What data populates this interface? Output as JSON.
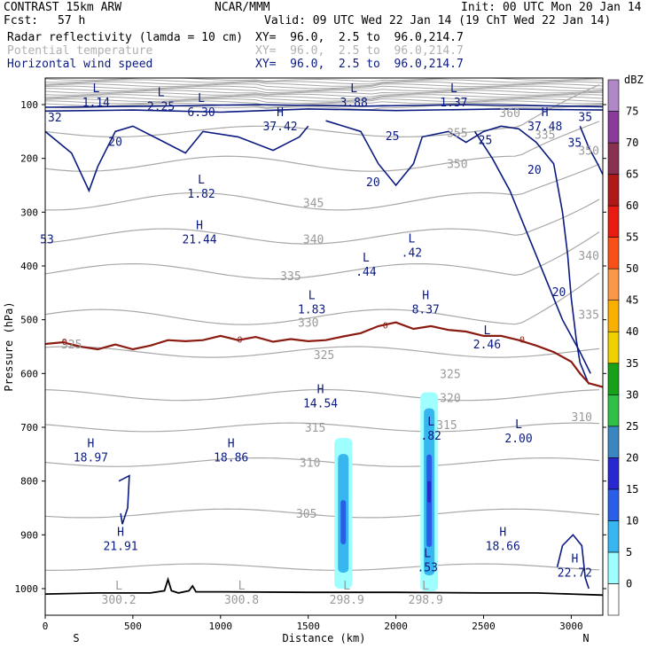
{
  "header": {
    "model": "CONTRAST 15km ARW",
    "center": "NCAR/MMM",
    "init": "Init: 00 UTC Mon 20 Jan 14",
    "fcst_label": "Fcst:",
    "fcst_value": "57 h",
    "valid": "Valid: 09 UTC Wed 22 Jan 14 (19 ChT Wed 22 Jan 14)",
    "fields": [
      {
        "name": "Radar reflectivity (lamda = 10 cm)",
        "xy": "XY=  96.0,  2.5 to  96.0,214.7",
        "color": "#000000"
      },
      {
        "name": "Potential temperature",
        "xy": "XY=  96.0,  2.5 to  96.0,214.7",
        "color": "#b0b0b0"
      },
      {
        "name": "Horizontal wind speed",
        "xy": "XY=  96.0,  2.5 to  96.0,214.7",
        "color": "#0a1a80"
      }
    ]
  },
  "chart_data": {
    "type": "cross-section",
    "xlabel": "Distance (km)",
    "ylabel": "Pressure (hPa)",
    "xlim": [
      0,
      3180
    ],
    "ylim": [
      1050,
      50
    ],
    "x_ticks": [
      "0",
      "500",
      "1000",
      "1500",
      "2000",
      "2500",
      "3000"
    ],
    "y_ticks": [
      "100",
      "200",
      "300",
      "400",
      "500",
      "600",
      "700",
      "800",
      "900",
      "1000"
    ],
    "x_ends": {
      "left": "S",
      "right": "N"
    },
    "colorbar": {
      "unit": "dBZ",
      "levels": [
        "0",
        "5",
        "10",
        "15",
        "20",
        "25",
        "30",
        "35",
        "40",
        "45",
        "50",
        "55",
        "60",
        "65",
        "70",
        "75"
      ],
      "colors": [
        "#ffffff",
        "#9ffefe",
        "#38b6f0",
        "#2a5ee8",
        "#2828d0",
        "#3a86c0",
        "#30c048",
        "#18a018",
        "#f0d000",
        "#f8b000",
        "#f89848",
        "#f85018",
        "#e81a12",
        "#b01818",
        "#883050",
        "#8a3a9a",
        "#b088c8"
      ]
    },
    "reflectivity_columns": [
      {
        "x": 1700,
        "p_top": 720,
        "p_bottom": 1000,
        "max_dbz": 15
      },
      {
        "x": 2190,
        "p_top": 635,
        "p_bottom": 1005,
        "max_dbz": 20
      }
    ],
    "theta_labels": [
      {
        "text": "325",
        "x": 150,
        "p": 545
      },
      {
        "text": "360",
        "x": 2650,
        "p": 115
      },
      {
        "text": "355",
        "x": 2350,
        "p": 152
      },
      {
        "text": "350",
        "x": 2350,
        "p": 210
      },
      {
        "text": "345",
        "x": 1530,
        "p": 282
      },
      {
        "text": "340",
        "x": 1530,
        "p": 350
      },
      {
        "text": "335",
        "x": 1400,
        "p": 418
      },
      {
        "text": "330",
        "x": 1500,
        "p": 505
      },
      {
        "text": "325",
        "x": 1590,
        "p": 565
      },
      {
        "text": "325",
        "x": 2310,
        "p": 600
      },
      {
        "text": "320",
        "x": 2310,
        "p": 645
      },
      {
        "text": "315",
        "x": 2290,
        "p": 695
      },
      {
        "text": "315",
        "x": 1540,
        "p": 700
      },
      {
        "text": "310",
        "x": 1510,
        "p": 765
      },
      {
        "text": "305",
        "x": 1490,
        "p": 860
      },
      {
        "text": "310",
        "x": 3060,
        "p": 680
      },
      {
        "text": "340",
        "x": 3100,
        "p": 380
      },
      {
        "text": "335",
        "x": 3100,
        "p": 490
      },
      {
        "text": "350",
        "x": 3100,
        "p": 185
      },
      {
        "text": "335",
        "x": 2850,
        "p": 155
      }
    ],
    "wind_labels": [
      {
        "text": "20",
        "x": 400,
        "p": 168
      },
      {
        "text": "25",
        "x": 1980,
        "p": 158
      },
      {
        "text": "25",
        "x": 2510,
        "p": 165
      },
      {
        "text": "20",
        "x": 1870,
        "p": 243
      },
      {
        "text": "20",
        "x": 2790,
        "p": 220
      },
      {
        "text": "20",
        "x": 2930,
        "p": 448
      },
      {
        "text": "35",
        "x": 3080,
        "p": 122
      },
      {
        "text": "35",
        "x": 3020,
        "p": 170
      },
      {
        "text": "32",
        "x": 55,
        "p": 123
      },
      {
        "text": "53",
        "x": 10,
        "p": 350
      }
    ],
    "wind_zero_labels": [
      {
        "text": "0",
        "x": 110,
        "p": 542
      },
      {
        "text": "0",
        "x": 1110,
        "p": 538
      },
      {
        "text": "0",
        "x": 1940,
        "p": 511
      },
      {
        "text": "0",
        "x": 2720,
        "p": 538
      }
    ],
    "extrema": [
      {
        "kind": "L",
        "value": "1.14",
        "x": 290,
        "p": 80
      },
      {
        "kind": "L",
        "value": "2.25",
        "x": 660,
        "p": 88
      },
      {
        "kind": "L",
        "value": "6.30",
        "x": 890,
        "p": 98
      },
      {
        "kind": "H",
        "value": "37.42",
        "x": 1340,
        "p": 125
      },
      {
        "kind": "L",
        "value": "3.88",
        "x": 1760,
        "p": 80
      },
      {
        "kind": "L",
        "value": "1.37",
        "x": 2330,
        "p": 80
      },
      {
        "kind": "H",
        "value": "37.48",
        "x": 2850,
        "p": 125
      },
      {
        "kind": "L",
        "value": "1.82",
        "x": 890,
        "p": 250
      },
      {
        "kind": "H",
        "value": "21.44",
        "x": 880,
        "p": 335
      },
      {
        "kind": "L",
        "value": ".42",
        "x": 2090,
        "p": 360
      },
      {
        "kind": "L",
        "value": ".44",
        "x": 1830,
        "p": 395
      },
      {
        "kind": "L",
        "value": "1.83",
        "x": 1520,
        "p": 465
      },
      {
        "kind": "H",
        "value": "8.37",
        "x": 2170,
        "p": 465
      },
      {
        "kind": "L",
        "value": "2.46",
        "x": 2520,
        "p": 530
      },
      {
        "kind": "H",
        "value": "14.54",
        "x": 1570,
        "p": 640
      },
      {
        "kind": "L",
        "value": ".82",
        "x": 2200,
        "p": 700
      },
      {
        "kind": "L",
        "value": "2.00",
        "x": 2700,
        "p": 705
      },
      {
        "kind": "H",
        "value": "18.97",
        "x": 260,
        "p": 740
      },
      {
        "kind": "H",
        "value": "18.86",
        "x": 1060,
        "p": 740
      },
      {
        "kind": "H",
        "value": "21.91",
        "x": 430,
        "p": 905
      },
      {
        "kind": "L",
        "value": ".53",
        "x": 2180,
        "p": 945
      },
      {
        "kind": "H",
        "value": "18.66",
        "x": 2610,
        "p": 905
      },
      {
        "kind": "H",
        "value": "22.72",
        "x": 3020,
        "p": 955
      },
      {
        "kind": "L",
        "value": "300.2",
        "x": 420,
        "p": 1005
      },
      {
        "kind": "L",
        "value": "300.8",
        "x": 1120,
        "p": 1005
      },
      {
        "kind": "L",
        "value": "298.9",
        "x": 1720,
        "p": 1005
      },
      {
        "kind": "L",
        "value": "298.9",
        "x": 2170,
        "p": 1005
      }
    ],
    "extrema_styles": {
      "300.2": "gray",
      "300.8": "gray",
      "298.9": "gray"
    },
    "surface_pressure": {
      "x": [
        0,
        300,
        600,
        680,
        700,
        720,
        760,
        820,
        840,
        860,
        1000,
        1500,
        2000,
        2500,
        2800,
        3000,
        3180
      ],
      "p": [
        1010,
        1008,
        1008,
        1004,
        983,
        1004,
        1008,
        1004,
        995,
        1006,
        1006,
        1007,
        1007,
        1008,
        1008,
        1010,
        1012
      ]
    },
    "zero_wind_line": {
      "x": [
        0,
        100,
        200,
        300,
        400,
        500,
        600,
        700,
        800,
        900,
        1000,
        1100,
        1200,
        1300,
        1400,
        1500,
        1600,
        1700,
        1800,
        1900,
        2000,
        2100,
        2200,
        2300,
        2400,
        2500,
        2600,
        2700,
        2800,
        2900,
        3000,
        3050,
        3100,
        3180
      ],
      "p": [
        545,
        542,
        550,
        555,
        546,
        555,
        548,
        538,
        540,
        538,
        530,
        538,
        532,
        541,
        536,
        540,
        538,
        531,
        525,
        512,
        505,
        517,
        512,
        519,
        522,
        530,
        530,
        538,
        548,
        560,
        578,
        600,
        618,
        625
      ]
    }
  }
}
